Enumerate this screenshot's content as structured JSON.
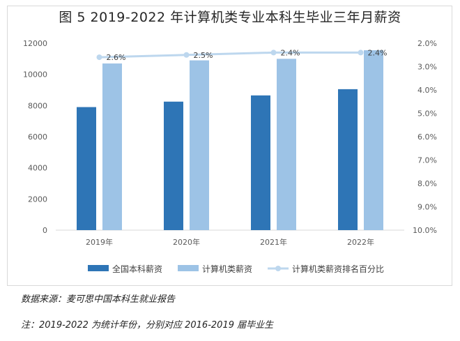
{
  "chart_data": {
    "type": "bar",
    "title": "图 5 2019-2022 年计算机类专业本科生毕业三年月薪资",
    "categories": [
      "2019年",
      "2020年",
      "2021年",
      "2022年"
    ],
    "series": [
      {
        "name": "全国本科薪资",
        "kind": "bar",
        "axis": "left",
        "values": [
          7900,
          8250,
          8650,
          9050
        ],
        "color": "#2e75b6"
      },
      {
        "name": "计算机类薪资",
        "kind": "bar",
        "axis": "left",
        "values": [
          10700,
          10900,
          11000,
          11550
        ],
        "color": "#9dc3e6"
      },
      {
        "name": "计算机类薪资排名百分比",
        "kind": "line",
        "axis": "right",
        "values": [
          2.6,
          2.5,
          2.4,
          2.4
        ],
        "labels": [
          "2.6%",
          "2.5%",
          "2.4%",
          "2.4%"
        ],
        "color": "#bdd7ee"
      }
    ],
    "y_left": {
      "min": 0,
      "max": 12000,
      "ticks": [
        "0",
        "2000",
        "4000",
        "6000",
        "8000",
        "10000",
        "12000"
      ]
    },
    "y_right": {
      "min": 2.0,
      "max": 10.0,
      "inverted": true,
      "ticks": [
        "2.0%",
        "3.0%",
        "4.0%",
        "5.0%",
        "6.0%",
        "7.0%",
        "8.0%",
        "9.0%",
        "10.0%"
      ]
    },
    "legend_position": "bottom",
    "grid": false
  },
  "notes": {
    "source": "数据来源：麦可思中国本科生就业报告",
    "remark": "注：2019-2022 为统计年份，分别对应 2016-2019 届毕业生"
  }
}
